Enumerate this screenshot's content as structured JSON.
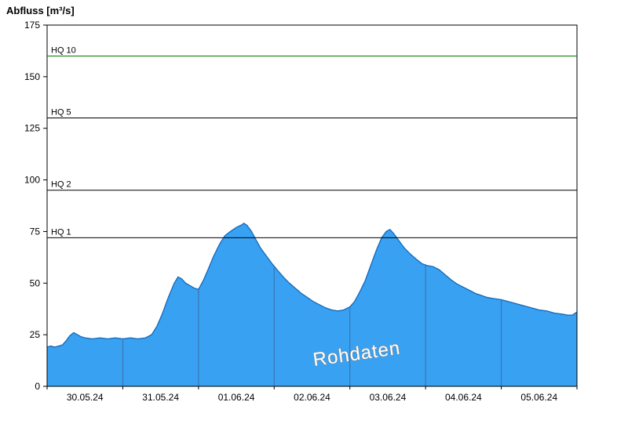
{
  "chart_data": {
    "type": "area",
    "title": "Abfluss [m³/s]",
    "ylabel": "Abfluss [m³/s]",
    "ylim": [
      0,
      175
    ],
    "y_ticks": [
      0,
      25,
      50,
      75,
      100,
      125,
      150,
      175
    ],
    "x_tick_labels": [
      "30.05.24",
      "31.05.24",
      "01.06.24",
      "02.06.24",
      "03.06.24",
      "04.06.24",
      "05.06.24"
    ],
    "x_range_days": 7,
    "grid": "vertical-day-lines-clipped-to-area",
    "legend": "none",
    "watermark": "Rohdaten",
    "reference_lines": [
      {
        "label": "HQ 10",
        "value": 160,
        "color": "#007a00"
      },
      {
        "label": "HQ 5",
        "value": 130,
        "color": "#000000"
      },
      {
        "label": "HQ 2",
        "value": 95,
        "color": "#000000"
      },
      {
        "label": "HQ 1",
        "value": 72,
        "color": "#000000"
      }
    ],
    "series": [
      {
        "name": "Rohdaten",
        "unit": "m³/s",
        "points_days_value": [
          [
            0.0,
            19
          ],
          [
            0.05,
            19.5
          ],
          [
            0.1,
            19
          ],
          [
            0.15,
            19.5
          ],
          [
            0.2,
            20
          ],
          [
            0.25,
            22
          ],
          [
            0.3,
            24.5
          ],
          [
            0.35,
            26
          ],
          [
            0.4,
            25
          ],
          [
            0.45,
            24
          ],
          [
            0.5,
            23.5
          ],
          [
            0.6,
            23
          ],
          [
            0.7,
            23.5
          ],
          [
            0.8,
            23
          ],
          [
            0.9,
            23.5
          ],
          [
            1.0,
            23
          ],
          [
            1.1,
            23.5
          ],
          [
            1.2,
            23
          ],
          [
            1.3,
            23.5
          ],
          [
            1.38,
            25
          ],
          [
            1.45,
            29
          ],
          [
            1.52,
            35
          ],
          [
            1.6,
            43
          ],
          [
            1.68,
            50
          ],
          [
            1.73,
            53
          ],
          [
            1.78,
            52
          ],
          [
            1.83,
            50
          ],
          [
            1.9,
            48.5
          ],
          [
            1.95,
            47.5
          ],
          [
            2.0,
            47
          ],
          [
            2.06,
            51
          ],
          [
            2.12,
            56
          ],
          [
            2.2,
            63
          ],
          [
            2.28,
            69
          ],
          [
            2.35,
            73
          ],
          [
            2.42,
            75
          ],
          [
            2.5,
            77
          ],
          [
            2.56,
            78
          ],
          [
            2.6,
            79
          ],
          [
            2.64,
            78
          ],
          [
            2.7,
            75
          ],
          [
            2.76,
            71
          ],
          [
            2.82,
            67
          ],
          [
            2.9,
            63
          ],
          [
            2.97,
            59.5
          ],
          [
            3.05,
            56
          ],
          [
            3.12,
            53
          ],
          [
            3.2,
            50
          ],
          [
            3.28,
            47.5
          ],
          [
            3.36,
            45
          ],
          [
            3.44,
            43
          ],
          [
            3.52,
            41
          ],
          [
            3.6,
            39.5
          ],
          [
            3.68,
            38
          ],
          [
            3.76,
            37
          ],
          [
            3.84,
            36.5
          ],
          [
            3.92,
            37
          ],
          [
            4.0,
            38.5
          ],
          [
            4.06,
            41
          ],
          [
            4.12,
            45
          ],
          [
            4.2,
            51
          ],
          [
            4.28,
            59
          ],
          [
            4.35,
            66
          ],
          [
            4.42,
            72
          ],
          [
            4.48,
            75
          ],
          [
            4.53,
            76
          ],
          [
            4.58,
            74
          ],
          [
            4.64,
            71
          ],
          [
            4.72,
            67
          ],
          [
            4.8,
            64
          ],
          [
            4.88,
            61.5
          ],
          [
            4.95,
            59.5
          ],
          [
            5.02,
            58.5
          ],
          [
            5.1,
            58
          ],
          [
            5.18,
            56.5
          ],
          [
            5.26,
            54
          ],
          [
            5.34,
            51.5
          ],
          [
            5.42,
            49.5
          ],
          [
            5.5,
            48
          ],
          [
            5.58,
            46.5
          ],
          [
            5.66,
            45
          ],
          [
            5.74,
            44
          ],
          [
            5.82,
            43
          ],
          [
            5.9,
            42.5
          ],
          [
            6.0,
            42
          ],
          [
            6.1,
            41
          ],
          [
            6.2,
            40
          ],
          [
            6.3,
            39
          ],
          [
            6.4,
            38
          ],
          [
            6.5,
            37
          ],
          [
            6.6,
            36.5
          ],
          [
            6.7,
            35.5
          ],
          [
            6.8,
            35
          ],
          [
            6.88,
            34.5
          ],
          [
            6.94,
            34.5
          ],
          [
            7.0,
            36
          ]
        ]
      }
    ],
    "colors": {
      "area_fill": "#38a1f2",
      "area_stroke": "#1568b8",
      "day_grid": "#3a6fa8",
      "axis": "#000000",
      "watermark_fill": "#ffffff",
      "watermark_outline": "#8c8c8c"
    }
  }
}
